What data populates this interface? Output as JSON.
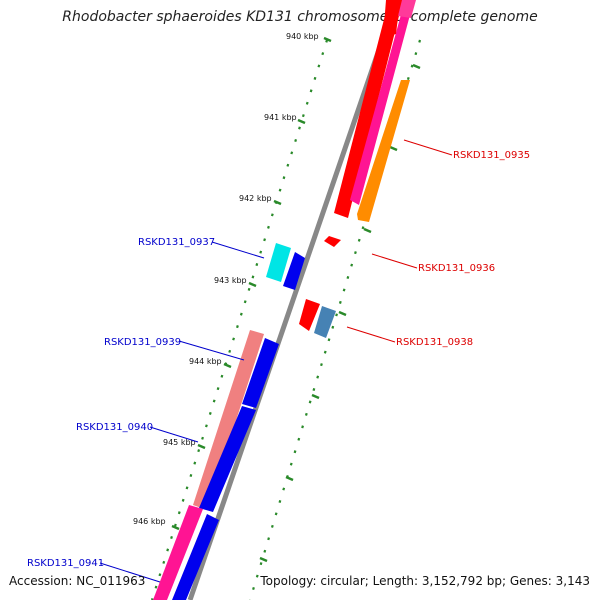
{
  "title": "Rhodobacter sphaeroides KD131 chromosome 1, complete genome",
  "accession": "Accession: NC_011963",
  "summary": "Topology: circular; Length: 3,152,792 bp; Genes: 3,143",
  "kbp_ticks": [
    "940 kbp",
    "941 kbp",
    "942 kbp",
    "943 kbp",
    "944 kbp",
    "945 kbp",
    "946 kbp"
  ],
  "gene_labels": [
    {
      "text": "RSKD131_0935",
      "color": "#dd0000"
    },
    {
      "text": "RSKD131_0936",
      "color": "#dd0000"
    },
    {
      "text": "RSKD131_0937",
      "color": "#0000cc"
    },
    {
      "text": "RSKD131_0938",
      "color": "#dd0000"
    },
    {
      "text": "RSKD131_0939",
      "color": "#0000cc"
    },
    {
      "text": "RSKD131_0940",
      "color": "#0000cc"
    },
    {
      "text": "RSKD131_0941",
      "color": "#0000cc"
    }
  ],
  "colors": {
    "backbone": "#888888",
    "tick": "#2a8a2a",
    "cds_forward": "#ff0000",
    "cds_reverse": "#0000ee",
    "cds_pink": "#ff1493",
    "cds_orange": "#ff8c00",
    "cds_cyan": "#00e5e5",
    "cds_steelblue": "#4682b4",
    "cds_salmon": "#f08080"
  }
}
